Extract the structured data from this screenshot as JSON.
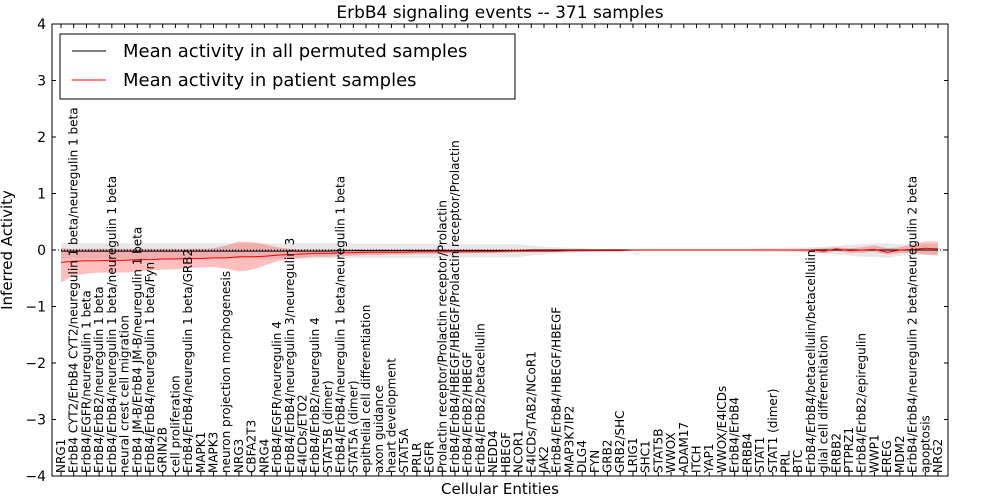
{
  "chart_data": {
    "type": "line",
    "title": "ErbB4 signaling events -- 371 samples",
    "xlabel": "Cellular Entities",
    "ylabel": "Inferred Activity",
    "ylim": [
      -4,
      4
    ],
    "yticks": [
      "4",
      "3",
      "2",
      "1",
      "0",
      "−1",
      "−2",
      "−3",
      "−4"
    ],
    "ytick_values": [
      4,
      3,
      2,
      1,
      0,
      -1,
      -2,
      -3,
      -4
    ],
    "legend": {
      "placement": "top-left",
      "entries": [
        {
          "label": "Mean activity in all permuted samples",
          "color": "#000000"
        },
        {
          "label": "Mean activity in patient samples",
          "color": "#ff0000"
        }
      ]
    },
    "categories": [
      "NRG1",
      "ErbB4 CYT2/ErbB4 CYT2/neuregulin 1 beta/neuregulin 1 beta",
      "ErbB4/EGFR/neuregulin 1 beta",
      "ErbB4/ErbB2/neuregulin 1 beta",
      "ErbB4/ErbB4/neuregulin 1 beta/neuregulin 1 beta",
      "neural crest cell migration",
      "ErbB4 JM-B/ErbB4 JM-B/neuregulin 1 beta",
      "ErbB4/ErbB4/neuregulin 1 beta/Fyn",
      "GRIN2B",
      "cell proliferation",
      "ErbB4/ErbB4/neuregulin 1 beta/GRB2",
      "MAPK1",
      "MAPK3",
      "neuron projection morphogenesis",
      "NRG3",
      "CBFA2T3",
      "NRG4",
      "ErbB4/EGFR/neuregulin 4",
      "ErbB4/ErbB4/neuregulin 3/neuregulin 3",
      "E4ICDs/ETO2",
      "ErbB4/ErbB2/neuregulin 4",
      "STAT5B (dimer)",
      "ErbB4/ErbB4/neuregulin 1 beta/neuregulin 1 beta",
      "STAT5A (dimer)",
      "epithelial cell differentiation",
      "axon guidance",
      "heart development",
      "STAT5A",
      "PRLR",
      "EGFR",
      "Prolactin receptor/Prolactin receptor/Prolactin",
      "ErbB4/ErbB4/HBEGF/HBEGF/Prolactin receptor/Prolactin",
      "ErbB4/ErbB2/HBEGF",
      "ErbB4/ErbB2/betacellulin",
      "NEDD4",
      "HBEGF",
      "NCOR1",
      "E4ICDs/TAB2/NCoR1",
      "JAK2",
      "ErbB4/ErbB4/HBEGF/HBEGF",
      "MAP3K7IP2",
      "DLG4",
      "FYN",
      "GRB2",
      "GRB2/SHC",
      "LRIG1",
      "SHC1",
      "STAT5B",
      "WWOX",
      "ADAM17",
      "ITCH",
      "YAP1",
      "WWOX/E4ICDs",
      "ErbB4/ErbB4",
      "ERBB4",
      "STAT1",
      "STAT1 (dimer)",
      "PRL",
      "BTC",
      "ErbB4/ErbB4/betacellulin/betacellulin",
      "glial cell differentiation",
      "ERBB2",
      "PTPRZ1",
      "ErbB4/ErbB2/epiregulin",
      "WWP1",
      "EREG",
      "MDM2",
      "ErbB4/ErbB4/neuregulin 2 beta/neuregulin 2 beta",
      "apoptosis",
      "NRG2"
    ],
    "series": [
      {
        "name": "Mean activity in all permuted samples",
        "color": "#000000",
        "values": [
          -0.02,
          -0.02,
          -0.02,
          -0.02,
          -0.02,
          -0.02,
          -0.02,
          -0.02,
          -0.02,
          -0.02,
          -0.02,
          -0.02,
          -0.02,
          -0.02,
          -0.02,
          -0.02,
          -0.02,
          -0.02,
          -0.02,
          -0.02,
          -0.02,
          -0.02,
          -0.01,
          -0.01,
          -0.01,
          -0.01,
          -0.01,
          -0.01,
          -0.01,
          -0.01,
          -0.01,
          -0.01,
          -0.01,
          -0.01,
          -0.01,
          -0.01,
          -0.01,
          0,
          0,
          0,
          0,
          0,
          0,
          0,
          0,
          0,
          0,
          0,
          0,
          0,
          0,
          0,
          0,
          0,
          0,
          0,
          0,
          0,
          0,
          0,
          0,
          0,
          0,
          0,
          0,
          0,
          0,
          0,
          0,
          0
        ],
        "band_upper": [
          0.12,
          0.12,
          0.12,
          0.12,
          0.12,
          0.12,
          0.12,
          0.12,
          0.12,
          0.12,
          0.12,
          0.12,
          0.12,
          0.12,
          0.12,
          0.12,
          0.12,
          0.12,
          0.12,
          0.12,
          0.12,
          0.12,
          0.12,
          0.11,
          0.11,
          0.11,
          0.11,
          0.11,
          0.11,
          0.11,
          0.11,
          0.1,
          0.1,
          0.1,
          0.1,
          0.1,
          0.1,
          0.08,
          0.06,
          0.05,
          0.04,
          0.03,
          0.02,
          0.02,
          0.02,
          0.02,
          0.02,
          0.02,
          0.02,
          0.02,
          0.02,
          0.02,
          0.02,
          0.02,
          0.02,
          0.03,
          0.03,
          0.04,
          0.04,
          0.05,
          0.06,
          0.07,
          0.09,
          0.1,
          0.12,
          0.12,
          0.1,
          0.1,
          0.1,
          0.1
        ],
        "band_lower": [
          -0.15,
          -0.15,
          -0.15,
          -0.15,
          -0.15,
          -0.15,
          -0.15,
          -0.15,
          -0.15,
          -0.15,
          -0.15,
          -0.15,
          -0.15,
          -0.15,
          -0.15,
          -0.15,
          -0.15,
          -0.15,
          -0.15,
          -0.15,
          -0.15,
          -0.15,
          -0.14,
          -0.14,
          -0.14,
          -0.14,
          -0.14,
          -0.14,
          -0.14,
          -0.14,
          -0.14,
          -0.13,
          -0.13,
          -0.13,
          -0.13,
          -0.13,
          -0.13,
          -0.1,
          -0.08,
          -0.06,
          -0.05,
          -0.04,
          -0.03,
          -0.02,
          -0.02,
          -0.02,
          -0.02,
          -0.02,
          -0.02,
          -0.02,
          -0.02,
          -0.02,
          -0.02,
          -0.02,
          -0.02,
          -0.03,
          -0.03,
          -0.04,
          -0.04,
          -0.05,
          -0.06,
          -0.08,
          -0.1,
          -0.12,
          -0.12,
          -0.14,
          -0.1,
          -0.08,
          -0.08,
          -0.08
        ]
      },
      {
        "name": "Mean activity in patient samples",
        "color": "#ff0000",
        "values": [
          -0.22,
          -0.2,
          -0.19,
          -0.19,
          -0.18,
          -0.18,
          -0.17,
          -0.17,
          -0.16,
          -0.16,
          -0.15,
          -0.15,
          -0.14,
          -0.14,
          -0.12,
          -0.12,
          -0.11,
          -0.09,
          -0.08,
          -0.07,
          -0.06,
          -0.06,
          -0.05,
          -0.05,
          -0.04,
          -0.04,
          -0.04,
          -0.04,
          -0.03,
          -0.03,
          -0.03,
          -0.03,
          -0.03,
          -0.03,
          -0.03,
          -0.02,
          -0.02,
          -0.02,
          -0.02,
          -0.02,
          -0.01,
          -0.01,
          -0.01,
          -0.01,
          -0.01,
          0,
          0,
          0,
          0,
          0,
          0,
          0,
          0,
          0,
          0,
          0,
          0,
          0,
          0,
          0,
          -0.02,
          0.02,
          -0.01,
          0,
          0.01,
          -0.04,
          0,
          0.01,
          0.03,
          0.02
        ],
        "band_upper": [
          0.03,
          0.02,
          0.02,
          0.02,
          0.02,
          0.02,
          0.02,
          0.02,
          0.02,
          0.02,
          0.02,
          0.02,
          0.03,
          0.08,
          0.15,
          0.14,
          0.1,
          0.05,
          0.02,
          0.01,
          0.01,
          0.01,
          0.01,
          0.01,
          0.01,
          0.01,
          0.01,
          0.01,
          0.01,
          0.01,
          0.01,
          0.01,
          0.01,
          0.01,
          0.01,
          0.01,
          0.01,
          0.01,
          0.01,
          0.01,
          0.01,
          0.01,
          0.01,
          0.01,
          0.01,
          0.01,
          0.01,
          0.01,
          0.01,
          0.01,
          0.01,
          0.01,
          0.01,
          0.01,
          0.01,
          0.01,
          0.01,
          0.01,
          0.01,
          0.02,
          0.03,
          0.05,
          0.03,
          0.05,
          0.08,
          0.03,
          0.05,
          0.1,
          0.15,
          0.15
        ],
        "band_lower": [
          -0.58,
          -0.45,
          -0.42,
          -0.4,
          -0.4,
          -0.4,
          -0.38,
          -0.36,
          -0.35,
          -0.34,
          -0.32,
          -0.31,
          -0.3,
          -0.33,
          -0.38,
          -0.35,
          -0.28,
          -0.2,
          -0.16,
          -0.14,
          -0.12,
          -0.12,
          -0.11,
          -0.1,
          -0.09,
          -0.09,
          -0.08,
          -0.08,
          -0.07,
          -0.07,
          -0.06,
          -0.06,
          -0.06,
          -0.05,
          -0.05,
          -0.05,
          -0.04,
          -0.04,
          -0.04,
          -0.03,
          -0.03,
          -0.03,
          -0.02,
          -0.02,
          -0.02,
          -0.01,
          -0.01,
          -0.01,
          -0.01,
          -0.01,
          -0.01,
          -0.01,
          -0.01,
          -0.01,
          -0.01,
          -0.01,
          -0.01,
          -0.01,
          -0.02,
          -0.04,
          -0.06,
          -0.02,
          -0.05,
          -0.05,
          -0.03,
          -0.08,
          -0.05,
          -0.05,
          -0.08,
          -0.1
        ]
      }
    ],
    "baseline": 0
  }
}
